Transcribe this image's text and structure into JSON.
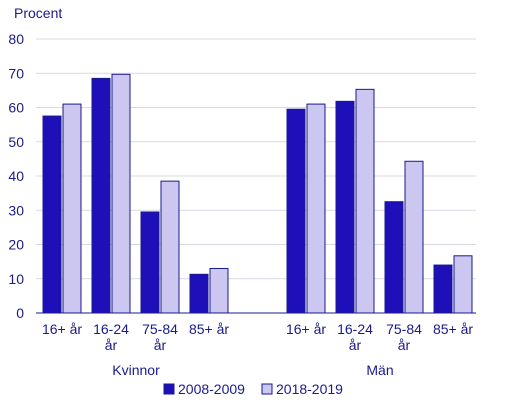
{
  "chart_data": {
    "type": "bar",
    "ylabel": "Procent",
    "ylim": [
      0,
      80
    ],
    "yticks": [
      0,
      10,
      20,
      30,
      40,
      50,
      60,
      70,
      80
    ],
    "grid": true,
    "legend_position": "bottom",
    "groups": [
      {
        "label": "Kvinnor",
        "categories": [
          {
            "lines": [
              "16+ år"
            ]
          },
          {
            "lines": [
              "16-24",
              "år"
            ]
          },
          {
            "lines": [
              "75-84",
              "år"
            ]
          },
          {
            "lines": [
              "85+ år"
            ]
          }
        ]
      },
      {
        "label": "Män",
        "categories": [
          {
            "lines": [
              "16+ år"
            ]
          },
          {
            "lines": [
              "16-24",
              "år"
            ]
          },
          {
            "lines": [
              "75-84",
              "år"
            ]
          },
          {
            "lines": [
              "85+ år"
            ]
          }
        ]
      }
    ],
    "series": [
      {
        "name": "2008-2009",
        "color": "#1f0fb8",
        "values": [
          57.5,
          68.5,
          29.5,
          11.3,
          59.5,
          61.8,
          32.5,
          14.0
        ]
      },
      {
        "name": "2018-2019",
        "color": "#cbc7f0",
        "values": [
          61.0,
          69.7,
          38.5,
          13.0,
          61.0,
          65.3,
          44.3,
          16.7
        ]
      }
    ]
  }
}
